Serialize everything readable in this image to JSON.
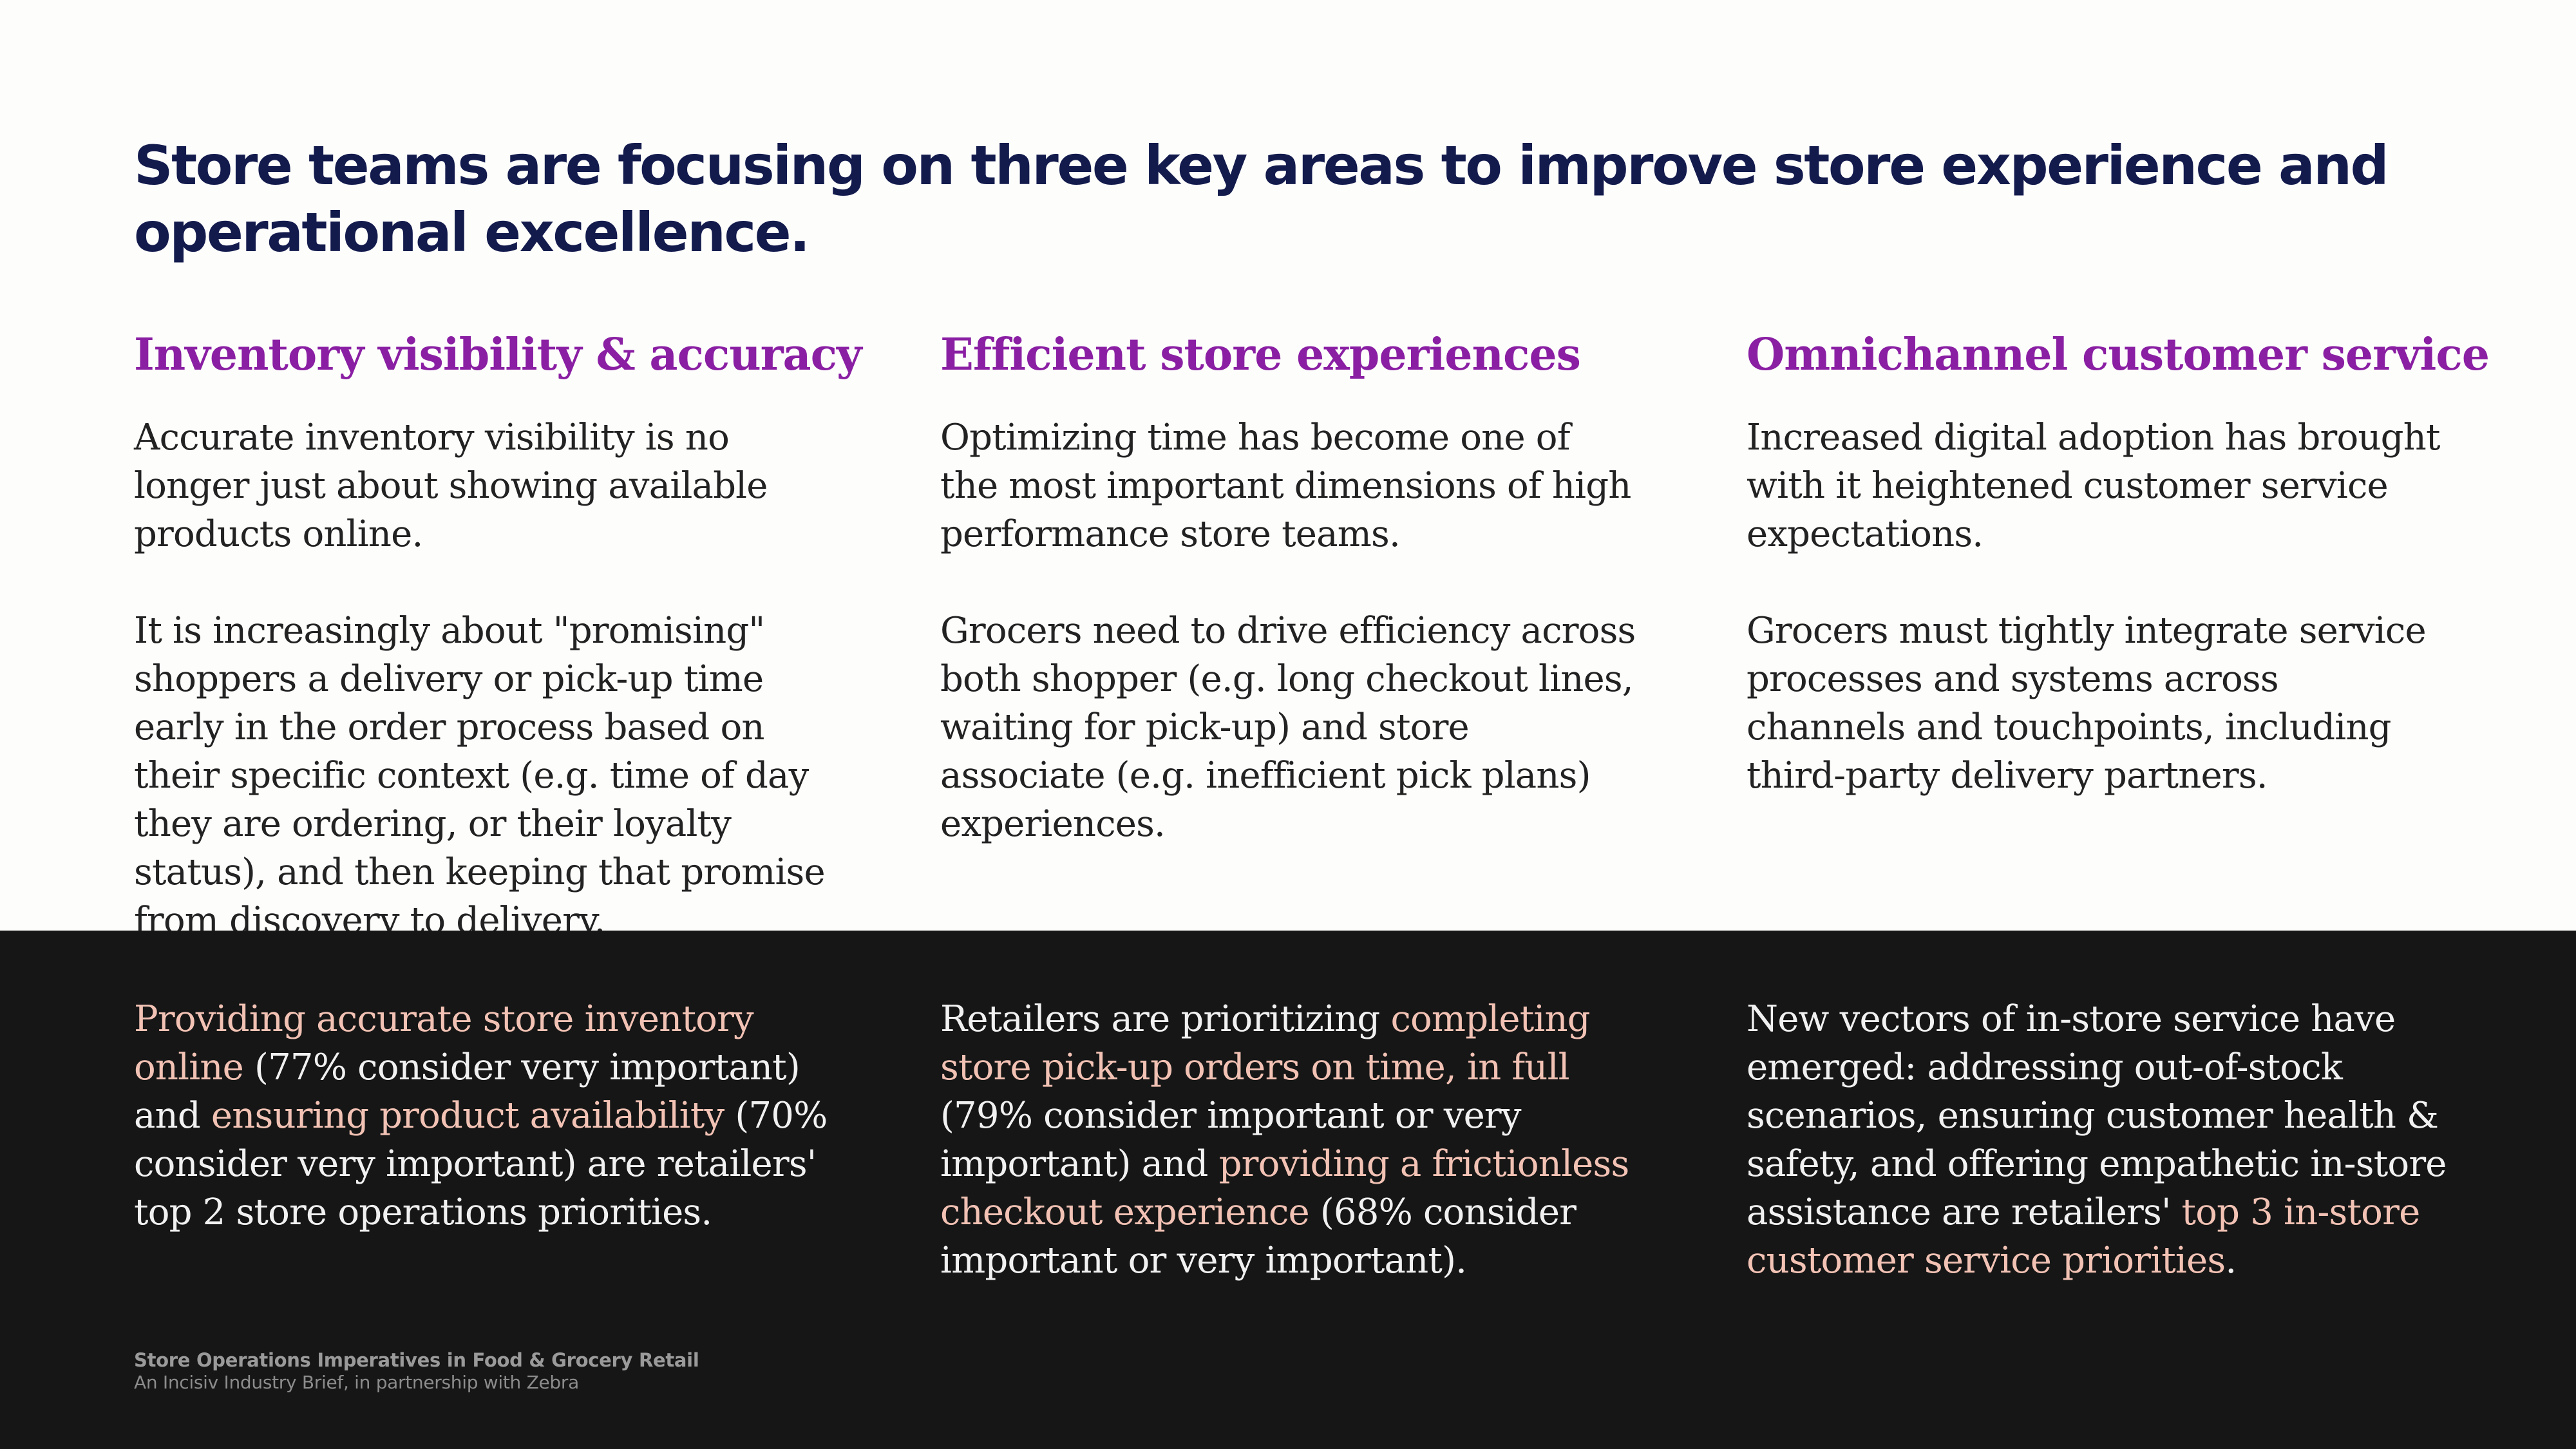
{
  "page": {
    "title": "Store teams are focusing on three key areas to improve store experience and operational excellence."
  },
  "columns": [
    {
      "heading": "Inventory visibility & accuracy",
      "paragraph_1": "Accurate inventory visibility is no longer just about showing available products online.",
      "paragraph_2": "It is increasingly about \"promising\" shoppers a delivery or pick-up time early in the order process based on their specific context (e.g. time of day they are ordering, or their loyalty status), and then keeping that promise from discovery to delivery."
    },
    {
      "heading": "Efficient store experiences",
      "paragraph_1": "Optimizing time has become one of the most important dimensions of high performance store teams.",
      "paragraph_2": "Grocers need to drive efficiency across both shopper (e.g. long checkout lines, waiting for pick-up) and store associate (e.g. inefficient pick plans) experiences."
    },
    {
      "heading": "Omnichannel customer service",
      "paragraph_1": "Increased digital adoption has brought with it heightened customer service expectations.",
      "paragraph_2": "Grocers must tightly integrate service processes and systems across channels and touchpoints, including third-party delivery partners."
    }
  ],
  "stats": [
    {
      "hl_1": "Providing accurate store inventory online",
      "text_1": " (77% consider very important) and ",
      "hl_2": "ensuring product availability",
      "text_2": " (70% consider very important) are retailers' top 2 store operations priorities."
    },
    {
      "text_1": "Retailers are prioritizing ",
      "hl_1": "completing store pick-up orders on time, in full",
      "text_2": " (79% consider important or very important) and ",
      "hl_2": "providing a frictionless checkout experience",
      "text_3": " (68% consider important or very important)."
    },
    {
      "text_1": "New vectors of in-store service have emerged: addressing out-of-stock scenarios, ensuring customer health & safety, and offering empathetic in-store assistance are retailers' ",
      "hl_1": "top 3 in-store customer service priorities",
      "text_2": "."
    }
  ],
  "footer": {
    "title": "Store Operations Imperatives in Food & Grocery Retail",
    "subtitle": "An Incisiv Industry Brief, in partnership with Zebra"
  },
  "colors": {
    "title": "#131b4d",
    "heading": "#8a1fa3",
    "body_text": "#222222",
    "dark_band": "#161616",
    "highlight": "#f2c2b4"
  }
}
